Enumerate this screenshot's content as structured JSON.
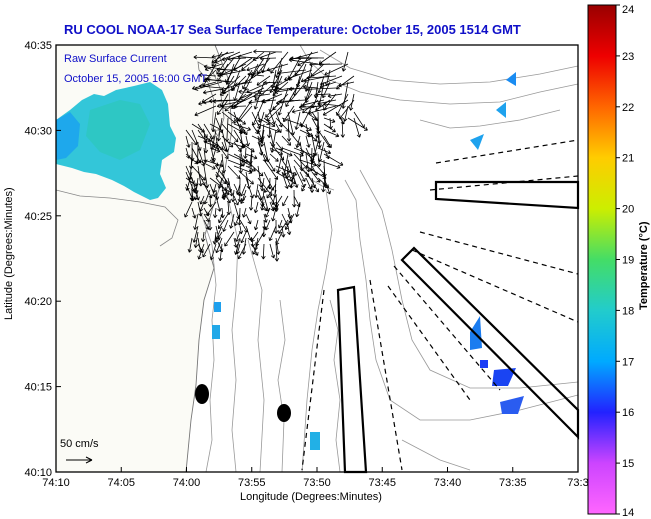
{
  "chart_data": {
    "type": "heatmap",
    "title": "RU COOL  NOAA-17  Sea Surface Temperature:  October 15, 2005 1514 GMT",
    "xlabel": "Longitude (Degrees:Minutes)",
    "ylabel": "Latitude (Degrees:Minutes)",
    "x_ticks": [
      "74:10",
      "74:05",
      "74:00",
      "73:55",
      "73:50",
      "73:45",
      "73:40",
      "73:35",
      "73:3"
    ],
    "y_ticks": [
      "40:10",
      "40:15",
      "40:20",
      "40:25",
      "40:30",
      "40:35"
    ],
    "xlim_minutes_west": [
      10,
      30
    ],
    "ylim_minutes_north": [
      10,
      35
    ],
    "legend": {
      "line1": "Raw Surface Current",
      "line2": "October 15, 2005 16:00 GMT"
    },
    "scale_label": "50 cm/s",
    "colorbar": {
      "label": "Temperature (°C)",
      "min": 14,
      "max": 24,
      "ticks": [
        "14",
        "15",
        "16",
        "17",
        "18",
        "19",
        "20",
        "21",
        "22",
        "23",
        "24"
      ],
      "stops": [
        "#ff66ff",
        "#cc44ff",
        "#2222ff",
        "#00aaff",
        "#22cccc",
        "#44dd66",
        "#ccee00",
        "#ffcc00",
        "#ff6600",
        "#ee0000",
        "#990000"
      ]
    },
    "sst_patches": [
      {
        "region": "nw-shelf",
        "temp": 17.6
      },
      {
        "region": "nearshore-strip",
        "temp": 17.2
      },
      {
        "region": "offshore-east",
        "temp": 16.6
      },
      {
        "region": "southeast-cluster",
        "temp": 16.2
      }
    ]
  }
}
